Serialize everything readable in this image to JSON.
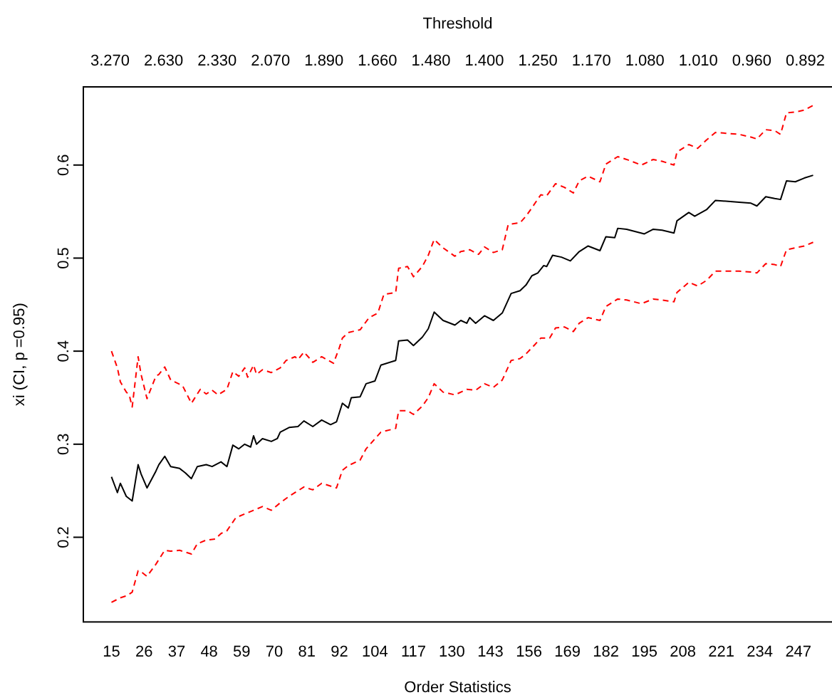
{
  "chart_data": {
    "type": "line",
    "xlabel": "Order Statistics",
    "x2label": "Threshold",
    "ylabel": "xi (CI, p =0.95)",
    "xlim": [
      5.5,
      261.5
    ],
    "xticks": [
      15,
      26,
      37,
      48,
      59,
      70,
      81,
      92,
      104,
      117,
      130,
      143,
      156,
      169,
      182,
      195,
      208,
      221,
      234,
      247
    ],
    "annotations": [
      "3.270",
      "2.630",
      "2.330",
      "2.070",
      "1.890",
      "1.660",
      "1.480",
      "1.400",
      "1.250",
      "1.170",
      "1.080",
      "1.010",
      "0.960",
      "0.892"
    ],
    "ylim": [
      0.109,
      0.684
    ],
    "yticks": [
      0.2,
      0.3,
      0.4,
      0.5,
      0.6
    ],
    "series": [
      {
        "color": "#000000",
        "line_style": "solid",
        "x": [
          15,
          17,
          18,
          20,
          22,
          24,
          25,
          27,
          30,
          31,
          33,
          35,
          38,
          40,
          42,
          44,
          47,
          49,
          52,
          54,
          56,
          58,
          60,
          62,
          63,
          64,
          66,
          69,
          71,
          72,
          75,
          78,
          80,
          83,
          86,
          89,
          91,
          93,
          95,
          96,
          99,
          101,
          104,
          106,
          111,
          112,
          115,
          117,
          120,
          122,
          124,
          127,
          131,
          133,
          135,
          136,
          138,
          141,
          144,
          147,
          150,
          153,
          155,
          157,
          159,
          161,
          162,
          164,
          167,
          170,
          173,
          176,
          180,
          182,
          185,
          186,
          189,
          195,
          198,
          201,
          205,
          206,
          210,
          212,
          216,
          219,
          227,
          231,
          233,
          236,
          239,
          241,
          243,
          246,
          249,
          252
        ],
        "values": [
          0.265,
          0.248,
          0.258,
          0.244,
          0.239,
          0.278,
          0.268,
          0.253,
          0.271,
          0.278,
          0.287,
          0.276,
          0.274,
          0.269,
          0.263,
          0.276,
          0.278,
          0.276,
          0.281,
          0.276,
          0.299,
          0.295,
          0.3,
          0.297,
          0.309,
          0.3,
          0.306,
          0.303,
          0.306,
          0.313,
          0.318,
          0.319,
          0.325,
          0.319,
          0.326,
          0.321,
          0.324,
          0.344,
          0.339,
          0.35,
          0.351,
          0.365,
          0.368,
          0.385,
          0.39,
          0.411,
          0.412,
          0.406,
          0.415,
          0.424,
          0.442,
          0.433,
          0.428,
          0.433,
          0.43,
          0.436,
          0.43,
          0.438,
          0.433,
          0.441,
          0.462,
          0.465,
          0.471,
          0.481,
          0.484,
          0.492,
          0.491,
          0.503,
          0.501,
          0.497,
          0.507,
          0.513,
          0.508,
          0.523,
          0.522,
          0.532,
          0.531,
          0.526,
          0.531,
          0.53,
          0.527,
          0.54,
          0.549,
          0.545,
          0.552,
          0.562,
          0.56,
          0.559,
          0.556,
          0.566,
          0.564,
          0.563,
          0.583,
          0.582,
          0.586,
          0.589
        ]
      },
      {
        "color": "#ff0000",
        "line_style": "dashed",
        "x": [
          15,
          17,
          18,
          20,
          21,
          22,
          24,
          25,
          27,
          30,
          31,
          33,
          35,
          39,
          42,
          45,
          47,
          49,
          51,
          54,
          56,
          58,
          60,
          61,
          63,
          64,
          66,
          69,
          72,
          74,
          77,
          78,
          80,
          82,
          83,
          86,
          90,
          92,
          93,
          95,
          99,
          102,
          105,
          107,
          111,
          112,
          115,
          117,
          120,
          122,
          124,
          127,
          131,
          133,
          136,
          139,
          141,
          144,
          147,
          149,
          153,
          155,
          157,
          160,
          162,
          165,
          168,
          171,
          173,
          176,
          180,
          182,
          186,
          189,
          194,
          198,
          201,
          205,
          206,
          210,
          213,
          216,
          219,
          227,
          231,
          233,
          236,
          239,
          241,
          243,
          246,
          249,
          252
        ],
        "values": [
          0.4,
          0.382,
          0.367,
          0.356,
          0.353,
          0.34,
          0.394,
          0.375,
          0.349,
          0.373,
          0.375,
          0.383,
          0.369,
          0.363,
          0.344,
          0.359,
          0.354,
          0.358,
          0.353,
          0.359,
          0.378,
          0.373,
          0.382,
          0.372,
          0.385,
          0.375,
          0.38,
          0.377,
          0.382,
          0.39,
          0.394,
          0.391,
          0.399,
          0.392,
          0.388,
          0.394,
          0.387,
          0.404,
          0.414,
          0.42,
          0.423,
          0.436,
          0.441,
          0.461,
          0.463,
          0.489,
          0.491,
          0.48,
          0.491,
          0.503,
          0.52,
          0.511,
          0.502,
          0.507,
          0.509,
          0.504,
          0.512,
          0.506,
          0.509,
          0.536,
          0.538,
          0.545,
          0.554,
          0.568,
          0.567,
          0.58,
          0.576,
          0.57,
          0.583,
          0.588,
          0.582,
          0.601,
          0.609,
          0.606,
          0.6,
          0.606,
          0.604,
          0.6,
          0.614,
          0.622,
          0.618,
          0.627,
          0.635,
          0.633,
          0.63,
          0.628,
          0.638,
          0.637,
          0.633,
          0.656,
          0.657,
          0.659,
          0.664
        ]
      },
      {
        "color": "#ff0000",
        "line_style": "dashed",
        "x": [
          15,
          18,
          20,
          22,
          24,
          25,
          27,
          30,
          33,
          35,
          38,
          42,
          44,
          47,
          50,
          52,
          54,
          57,
          60,
          63,
          66,
          69,
          72,
          75,
          80,
          83,
          86,
          91,
          93,
          95,
          99,
          101,
          106,
          111,
          112,
          115,
          117,
          120,
          122,
          124,
          127,
          131,
          135,
          138,
          141,
          144,
          147,
          150,
          153,
          155,
          158,
          160,
          163,
          165,
          168,
          171,
          173,
          176,
          180,
          182,
          186,
          189,
          194,
          198,
          201,
          205,
          206,
          210,
          213,
          216,
          219,
          227,
          231,
          233,
          236,
          239,
          241,
          243,
          246,
          249,
          252
        ],
        "values": [
          0.13,
          0.135,
          0.137,
          0.141,
          0.164,
          0.163,
          0.158,
          0.171,
          0.186,
          0.185,
          0.186,
          0.182,
          0.193,
          0.197,
          0.198,
          0.204,
          0.207,
          0.221,
          0.225,
          0.229,
          0.233,
          0.229,
          0.237,
          0.244,
          0.254,
          0.251,
          0.258,
          0.253,
          0.272,
          0.277,
          0.283,
          0.295,
          0.313,
          0.317,
          0.336,
          0.336,
          0.332,
          0.341,
          0.35,
          0.365,
          0.356,
          0.353,
          0.359,
          0.358,
          0.365,
          0.361,
          0.369,
          0.39,
          0.392,
          0.397,
          0.407,
          0.414,
          0.414,
          0.425,
          0.426,
          0.421,
          0.43,
          0.436,
          0.433,
          0.448,
          0.456,
          0.455,
          0.451,
          0.456,
          0.455,
          0.453,
          0.463,
          0.474,
          0.47,
          0.476,
          0.486,
          0.486,
          0.485,
          0.484,
          0.494,
          0.493,
          0.491,
          0.509,
          0.511,
          0.513,
          0.517
        ]
      }
    ]
  }
}
